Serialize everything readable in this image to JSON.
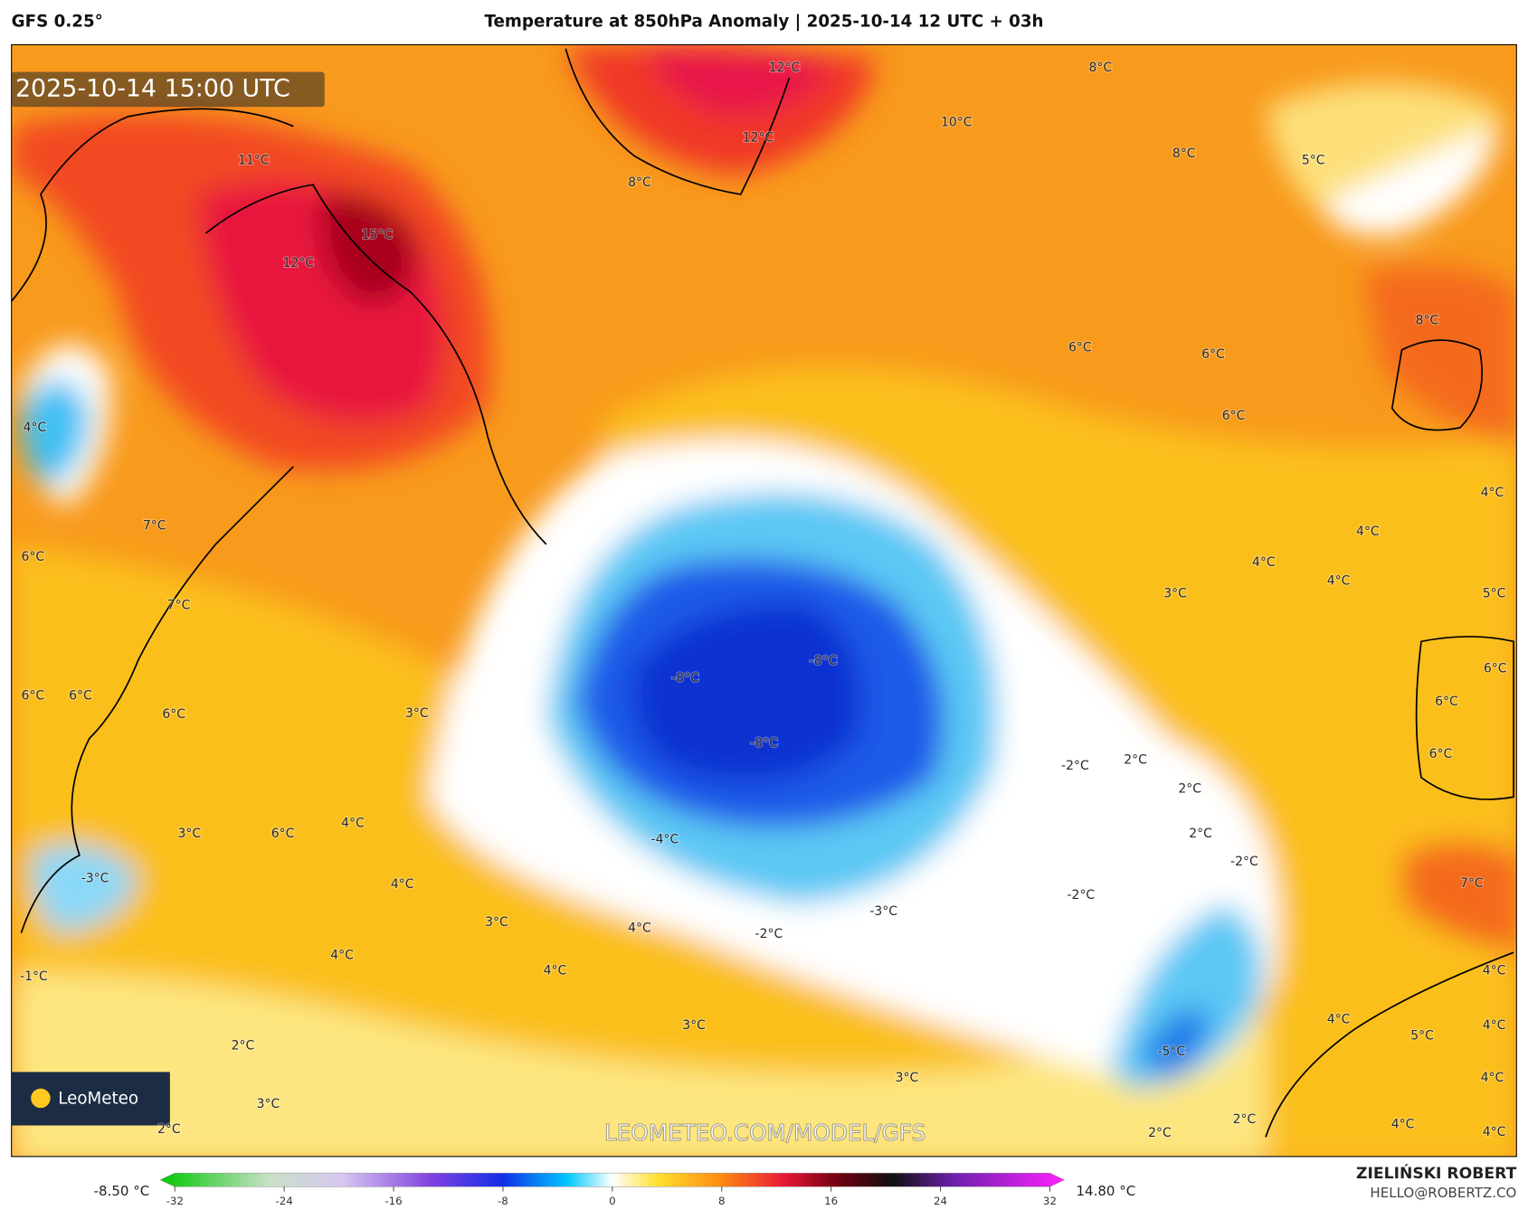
{
  "header": {
    "model": "GFS 0.25°",
    "title": "Temperature at 850hPa Anomaly | 2025-10-14 12 UTC + 03h"
  },
  "map": {
    "valid_time": "2025-10-14 15:00 UTC",
    "logo": "LeoMeteo",
    "watermark": "LEOMETEO.COM/MODEL/GFS",
    "labels": [
      "12°C",
      "8°C",
      "10°C",
      "12°C",
      "8°C",
      "5°C",
      "11°C",
      "8°C",
      "15°C",
      "12°C",
      "8°C",
      "6°C",
      "6°C",
      "6°C",
      "4°C",
      "4°C",
      "7°C",
      "4°C",
      "6°C",
      "4°C",
      "4°C",
      "3°C",
      "5°C",
      "7°C",
      "-8°C",
      "6°C",
      "-8°C",
      "6°C",
      "6°C",
      "6°C",
      "3°C",
      "6°C",
      "-8°C",
      "6°C",
      "2°C",
      "-2°C",
      "2°C",
      "4°C",
      "3°C",
      "6°C",
      "2°C",
      "-4°C",
      "-2°C",
      "-3°C",
      "4°C",
      "7°C",
      "-2°C",
      "-3°C",
      "3°C",
      "4°C",
      "-2°C",
      "4°C",
      "4°C",
      "4°C",
      "-1°C",
      "4°C",
      "3°C",
      "4°C",
      "5°C",
      "2°C",
      "-5°C",
      "3°C",
      "4°C",
      "3°C",
      "2°C",
      "2°C",
      "4°C",
      "2°C",
      "4°C"
    ]
  },
  "colorbar": {
    "lim": [
      -32,
      32
    ],
    "ticks": [
      -32,
      -24,
      -16,
      -8,
      0,
      8,
      16,
      24,
      32
    ],
    "min_label": "-8.50 °C",
    "max_label": "14.80 °C"
  },
  "footer": {
    "author": "ZIELIŃSKI ROBERT",
    "email": "HELLO@ROBERTZ.CO"
  }
}
